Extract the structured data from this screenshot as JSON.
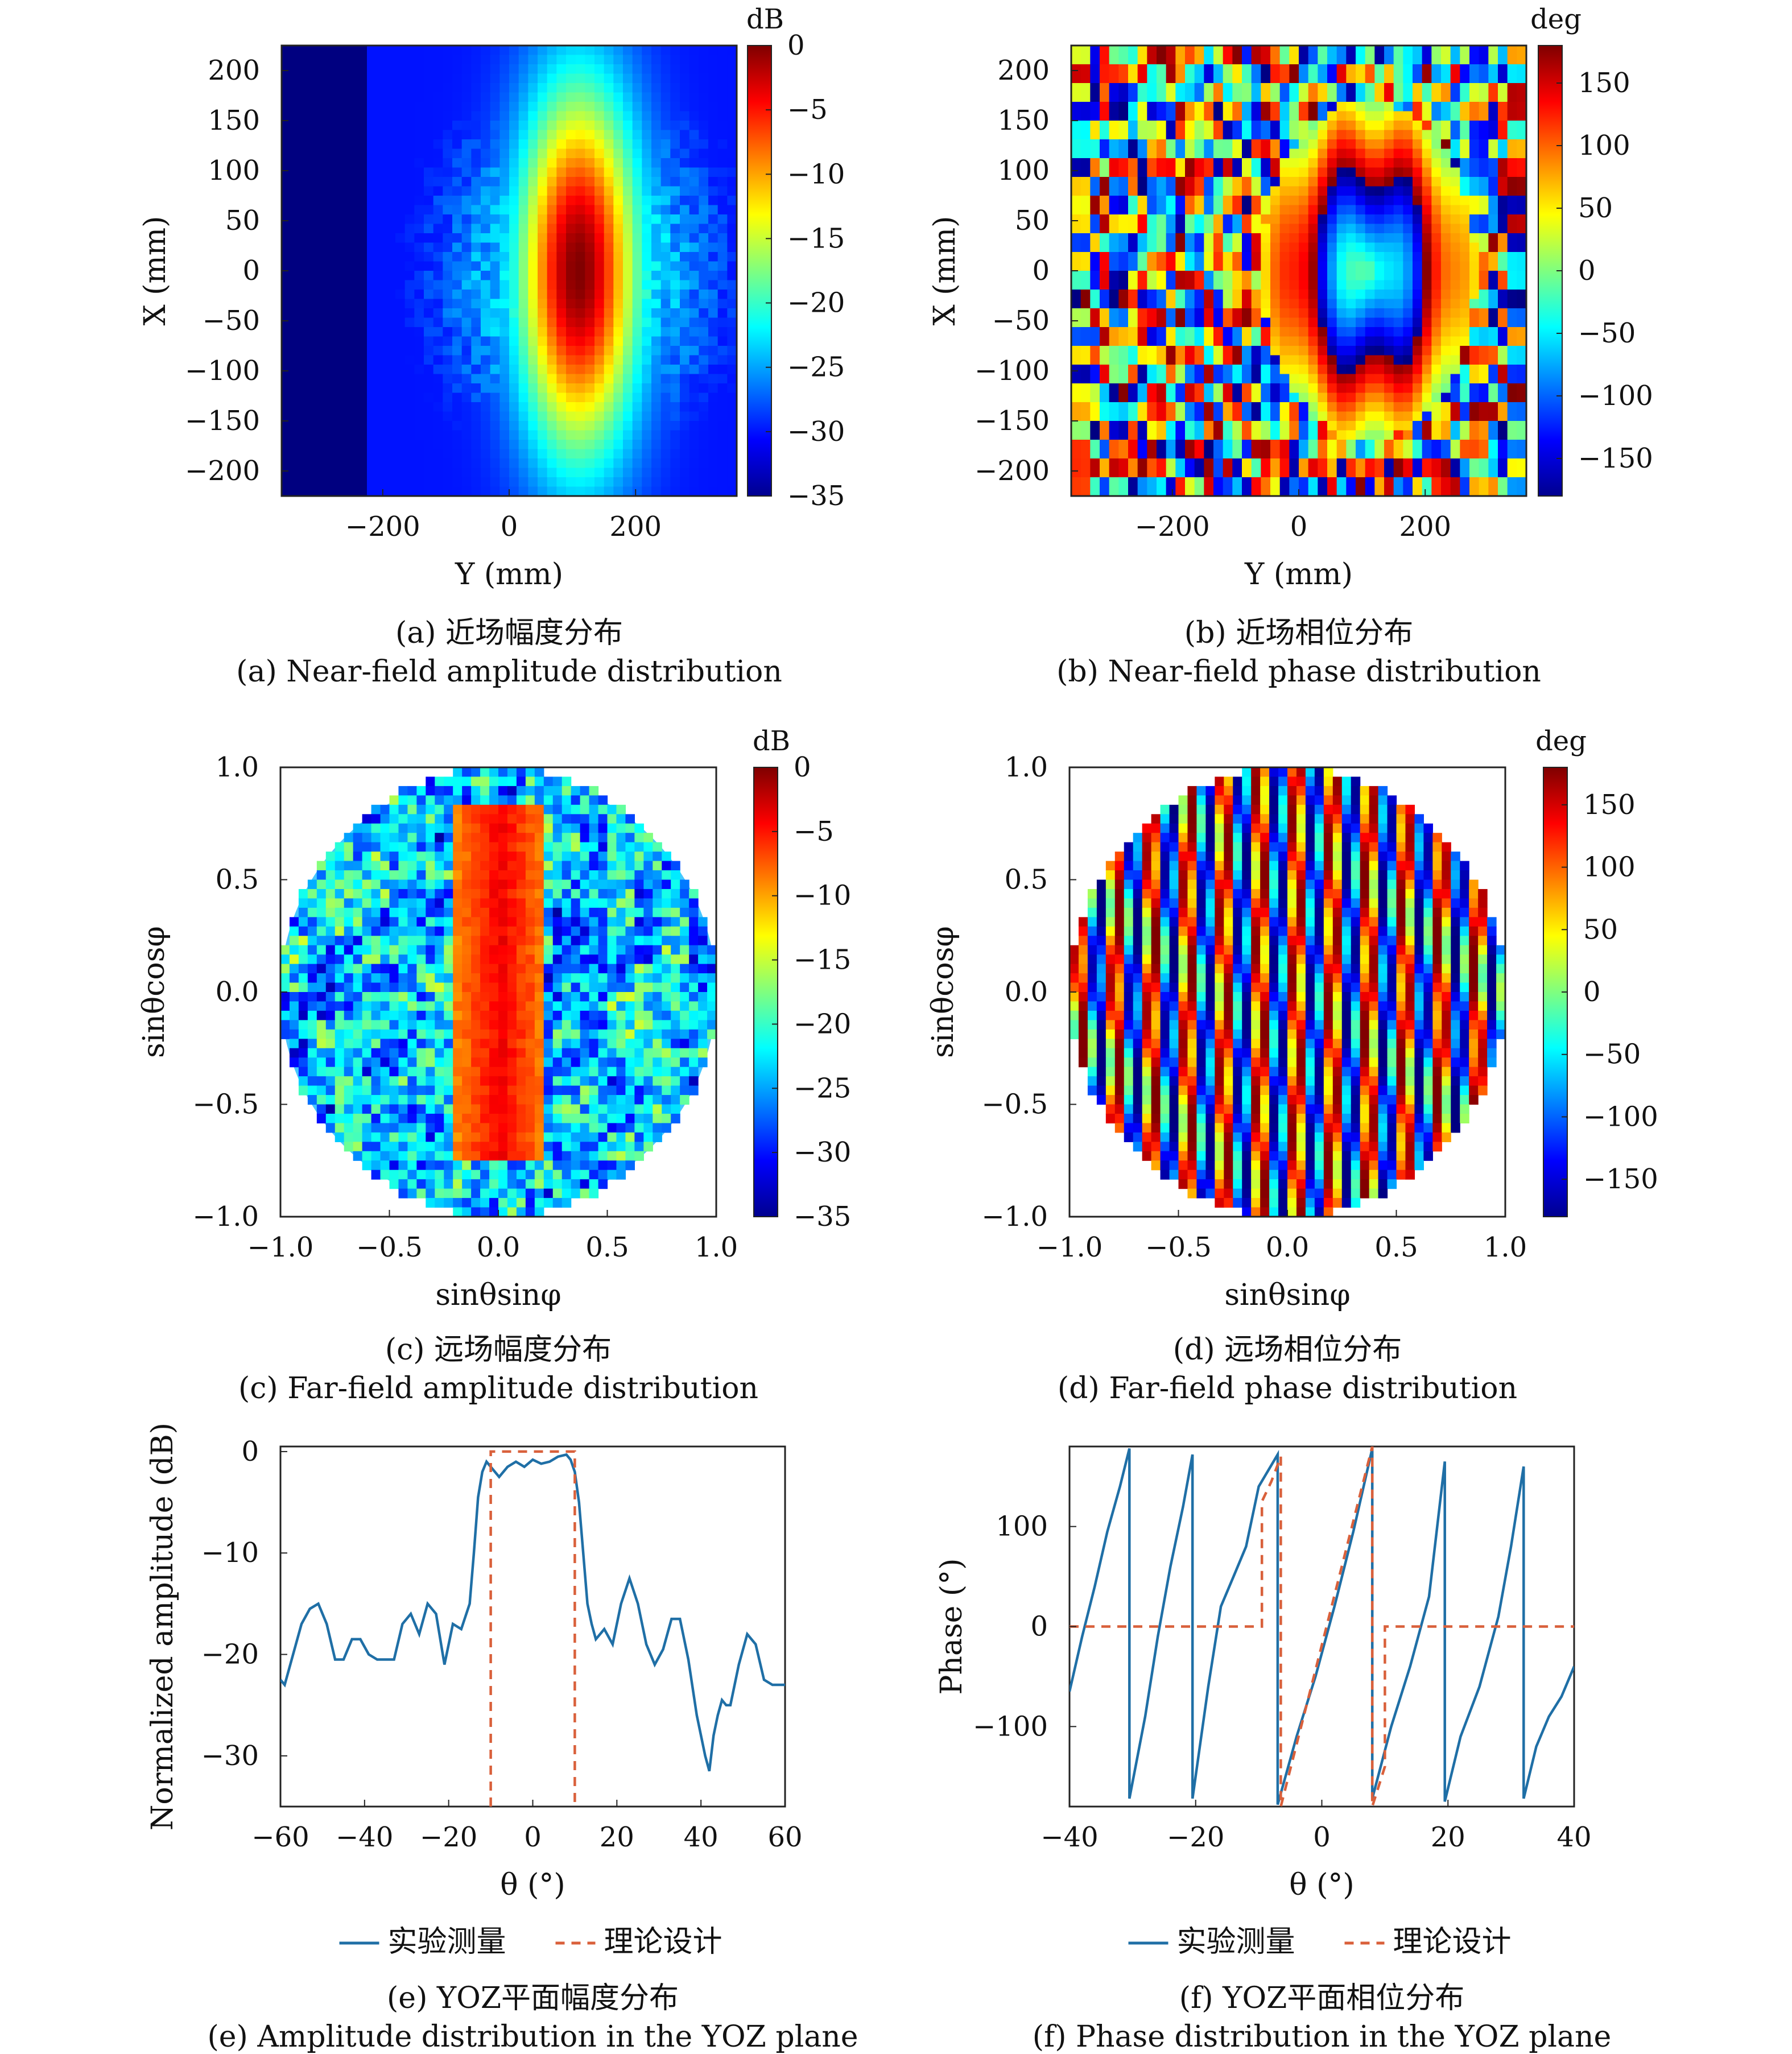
{
  "chart_data": [
    {
      "id": "a",
      "type": "heatmap",
      "caption_cn": "(a) 近场幅度分布",
      "caption_en": "(a) Near-field amplitude distribution",
      "xlabel": "Y (mm)",
      "ylabel": "X (mm)",
      "xlim": [
        -360,
        360
      ],
      "ylim": [
        -225,
        225
      ],
      "xticks": [
        "−200",
        "0",
        "200"
      ],
      "xtick_values": [
        -200,
        0,
        200
      ],
      "yticks": [
        "200",
        "150",
        "100",
        "50",
        "0",
        "−50",
        "−100",
        "−150",
        "−200"
      ],
      "ytick_values": [
        200,
        150,
        100,
        50,
        0,
        -50,
        -100,
        -150,
        -200
      ],
      "colorbar": {
        "unit": "dB",
        "range": [
          -35,
          0
        ],
        "ticks": [
          "0",
          "−5",
          "−10",
          "−15",
          "−20",
          "−25",
          "−30",
          "−35"
        ],
        "tick_values": [
          0,
          -5,
          -10,
          -15,
          -20,
          -25,
          -30,
          -35
        ]
      },
      "pattern": {
        "kind": "nf-amp",
        "peak_y": 110,
        "peak_x": 0,
        "peak_db": 0,
        "floor_db": -35
      }
    },
    {
      "id": "b",
      "type": "heatmap",
      "caption_cn": "(b) 近场相位分布",
      "caption_en": "(b) Near-field phase distribution",
      "xlabel": "Y (mm)",
      "ylabel": "X (mm)",
      "xlim": [
        -360,
        360
      ],
      "ylim": [
        -225,
        225
      ],
      "xticks": [
        "−200",
        "0",
        "200"
      ],
      "xtick_values": [
        -200,
        0,
        200
      ],
      "yticks": [
        "200",
        "150",
        "100",
        "50",
        "0",
        "−50",
        "−100",
        "−150",
        "−200"
      ],
      "ytick_values": [
        200,
        150,
        100,
        50,
        0,
        -50,
        -100,
        -150,
        -200
      ],
      "colorbar": {
        "unit": "deg",
        "range": [
          -180,
          180
        ],
        "ticks": [
          "150",
          "100",
          "50",
          "0",
          "−50",
          "−100",
          "−150"
        ],
        "tick_values": [
          150,
          100,
          50,
          0,
          -50,
          -100,
          -150
        ]
      },
      "pattern": {
        "kind": "nf-phase",
        "center_y": 110,
        "center_x": 0
      }
    },
    {
      "id": "c",
      "type": "heatmap",
      "caption_cn": "(c) 远场幅度分布",
      "caption_en": "(c) Far-field amplitude distribution",
      "xlabel": "sinθsinφ",
      "ylabel": "sinθcosφ",
      "xlim": [
        -1,
        1
      ],
      "ylim": [
        -1,
        1
      ],
      "xticks": [
        "−1.0",
        "−0.5",
        "0.0",
        "0.5",
        "1.0"
      ],
      "xtick_values": [
        -1,
        -0.5,
        0,
        0.5,
        1
      ],
      "yticks": [
        "1.0",
        "0.5",
        "0.0",
        "−0.5",
        "−1.0"
      ],
      "ytick_values": [
        1,
        0.5,
        0,
        -0.5,
        -1
      ],
      "colorbar": {
        "unit": "dB",
        "range": [
          -35,
          0
        ],
        "ticks": [
          "0",
          "−5",
          "−10",
          "−15",
          "−20",
          "−25",
          "−30",
          "−35"
        ],
        "tick_values": [
          0,
          -5,
          -10,
          -15,
          -20,
          -25,
          -30,
          -35
        ]
      },
      "pattern": {
        "kind": "ff-amp",
        "beam_u": [
          -0.2,
          0.22
        ],
        "beam_v": [
          -0.75,
          0.85
        ]
      }
    },
    {
      "id": "d",
      "type": "heatmap",
      "caption_cn": "(d) 远场相位分布",
      "caption_en": "(d) Far-field phase distribution",
      "xlabel": "sinθsinφ",
      "ylabel": "sinθcosφ",
      "xlim": [
        -1,
        1
      ],
      "ylim": [
        -1,
        1
      ],
      "xticks": [
        "−1.0",
        "−0.5",
        "0.0",
        "0.5",
        "1.0"
      ],
      "xtick_values": [
        -1,
        -0.5,
        0,
        0.5,
        1
      ],
      "yticks": [
        "1.0",
        "0.5",
        "0.0",
        "−0.5",
        "−1.0"
      ],
      "ytick_values": [
        1,
        0.5,
        0,
        -0.5,
        -1
      ],
      "colorbar": {
        "unit": "deg",
        "range": [
          -180,
          180
        ],
        "ticks": [
          "150",
          "100",
          "50",
          "0",
          "−50",
          "−100",
          "−150"
        ],
        "tick_values": [
          150,
          100,
          50,
          0,
          -50,
          -100,
          -150
        ]
      },
      "pattern": {
        "kind": "ff-phase"
      }
    },
    {
      "id": "e",
      "type": "line",
      "caption_cn": "(e) YOZ平面幅度分布",
      "caption_en": "(e) Amplitude distribution in the YOZ plane",
      "xlabel": "θ (°)",
      "ylabel": "Normalized amplitude (dB)",
      "xlim": [
        -60,
        60
      ],
      "ylim": [
        -35,
        0.5
      ],
      "xticks": [
        "−60",
        "−40",
        "−20",
        "0",
        "20",
        "40",
        "60"
      ],
      "xtick_values": [
        -60,
        -40,
        -20,
        0,
        20,
        40,
        60
      ],
      "yticks": [
        "0",
        "−10",
        "−20",
        "−30"
      ],
      "ytick_values": [
        0,
        -10,
        -20,
        -30
      ],
      "legend": [
        "实验测量",
        "理论设计"
      ],
      "series": [
        {
          "name": "实验测量",
          "style": "solid",
          "color": "#1f6fa6",
          "x": [
            -60,
            -59,
            -57,
            -55,
            -53,
            -51,
            -49,
            -47,
            -45,
            -43,
            -41,
            -39,
            -37,
            -35,
            -33,
            -31,
            -29,
            -27,
            -25,
            -23,
            -21,
            -19,
            -17,
            -15,
            -14,
            -13,
            -12,
            -11,
            -10,
            -9,
            -8,
            -6,
            -4,
            -2,
            0,
            2,
            4,
            6,
            8,
            9,
            10,
            11,
            12,
            13,
            14,
            15,
            17,
            19,
            21,
            23,
            25,
            27,
            29,
            31,
            33,
            35,
            37,
            39,
            41,
            42,
            43,
            44,
            45,
            46,
            47,
            49,
            51,
            53,
            55,
            57,
            59,
            60
          ],
          "y": [
            -22.5,
            -23,
            -20,
            -17,
            -15.5,
            -15,
            -17,
            -20.5,
            -20.5,
            -18.5,
            -18.5,
            -20,
            -20.5,
            -20.5,
            -20.5,
            -17,
            -16,
            -18,
            -15,
            -16,
            -21,
            -17,
            -17.5,
            -15,
            -10,
            -4.5,
            -2,
            -1,
            -1.5,
            -2,
            -2.5,
            -1.5,
            -1.0,
            -1.5,
            -0.8,
            -1.2,
            -1.0,
            -0.5,
            -0.3,
            -0.8,
            -2,
            -5,
            -10,
            -15,
            -17,
            -18.5,
            -17.5,
            -19,
            -15,
            -12.5,
            -15,
            -19,
            -21,
            -19.5,
            -16.5,
            -16.5,
            -20.5,
            -26,
            -30,
            -31.5,
            -28,
            -26,
            -24.5,
            -25,
            -25,
            -21,
            -18,
            -19,
            -22.5,
            -23,
            -23,
            -23
          ]
        },
        {
          "name": "理论设计",
          "style": "dashed",
          "color": "#d9603b",
          "x": [
            -10,
            -10,
            10,
            10
          ],
          "y": [
            -35,
            0,
            0,
            -35
          ]
        }
      ]
    },
    {
      "id": "f",
      "type": "line",
      "caption_cn": "(f) YOZ平面相位分布",
      "caption_en": "(f) Phase distribution in the YOZ plane",
      "xlabel": "θ (°)",
      "ylabel": "Phase (°)",
      "xlim": [
        -40,
        40
      ],
      "ylim": [
        -180,
        180
      ],
      "xticks": [
        "−40",
        "−20",
        "0",
        "20",
        "40"
      ],
      "xtick_values": [
        -40,
        -20,
        0,
        20,
        40
      ],
      "yticks": [
        "100",
        "0",
        "−100"
      ],
      "ytick_values": [
        100,
        0,
        -100
      ],
      "legend": [
        "实验测量",
        "理论设计"
      ],
      "series": [
        {
          "name": "实验测量",
          "style": "solid",
          "color": "#1f6fa6",
          "x": [
            -40,
            -38,
            -36,
            -34,
            -32,
            -30.5,
            -30.5,
            -28,
            -26,
            -24,
            -22,
            -20.5,
            -20.5,
            -18,
            -16,
            -14,
            -12,
            -10,
            -7,
            -7,
            -4,
            -1,
            2,
            5,
            8,
            8,
            11,
            14,
            17,
            19.5,
            19.5,
            22,
            25,
            28,
            30,
            32,
            32,
            34,
            36,
            38,
            40
          ],
          "y": [
            -65,
            -10,
            40,
            95,
            140,
            178,
            -172,
            -90,
            -10,
            60,
            120,
            172,
            -172,
            -60,
            20,
            50,
            80,
            140,
            172,
            -178,
            -110,
            -50,
            20,
            95,
            178,
            -172,
            -100,
            -40,
            30,
            165,
            -175,
            -110,
            -60,
            10,
            80,
            160,
            -172,
            -120,
            -90,
            -70,
            -40
          ]
        },
        {
          "name": "理论设计",
          "style": "dashed",
          "color": "#d9603b",
          "x": [
            -40,
            -9.5,
            -9.5,
            -8,
            -6.5,
            -6.5,
            8,
            8,
            10,
            10,
            40
          ],
          "y": [
            0,
            0,
            125,
            145,
            170,
            -180,
            180,
            -180,
            -140,
            0,
            0
          ]
        }
      ]
    }
  ]
}
